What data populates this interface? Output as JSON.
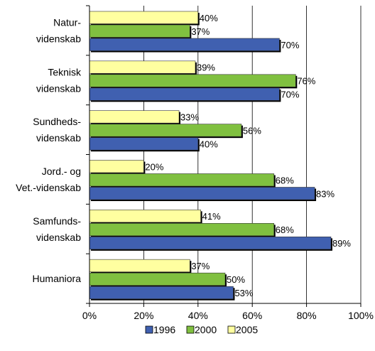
{
  "chart_data": {
    "type": "bar",
    "orientation": "horizontal",
    "categories": [
      [
        "Natur-",
        "videnskab"
      ],
      [
        "Teknisk",
        "videnskab"
      ],
      [
        "Sundheds-",
        "videnskab"
      ],
      [
        "Jord.- og",
        "Vet.-videnskab"
      ],
      [
        "Samfunds-",
        "videnskab"
      ],
      [
        "Humaniora"
      ]
    ],
    "series": [
      {
        "name": "2005",
        "color": "#FFFFA0",
        "values": [
          40,
          39,
          33,
          20,
          41,
          37
        ]
      },
      {
        "name": "2000",
        "color": "#80C040",
        "values": [
          37,
          76,
          56,
          68,
          68,
          50
        ]
      },
      {
        "name": "1996",
        "color": "#4060B0",
        "values": [
          70,
          70,
          40,
          83,
          89,
          53
        ]
      }
    ],
    "value_labels": [
      [
        "40%",
        "37%",
        "70%"
      ],
      [
        "39%",
        "76%",
        "70%"
      ],
      [
        "33%",
        "56%",
        "40%"
      ],
      [
        "20%",
        "68%",
        "83%"
      ],
      [
        "41%",
        "68%",
        "89%"
      ],
      [
        "37%",
        "50%",
        "53%"
      ]
    ],
    "xlim": [
      0,
      100
    ],
    "xticks": [
      "0%",
      "20%",
      "40%",
      "60%",
      "80%",
      "100%"
    ],
    "legend": {
      "position": "bottom",
      "entries": [
        {
          "label": "1996",
          "color": "#4060B0"
        },
        {
          "label": "2000",
          "color": "#80C040"
        },
        {
          "label": "2005",
          "color": "#FFFFA0"
        }
      ]
    },
    "grid": "vertical",
    "title": "",
    "xlabel": "",
    "ylabel": ""
  }
}
